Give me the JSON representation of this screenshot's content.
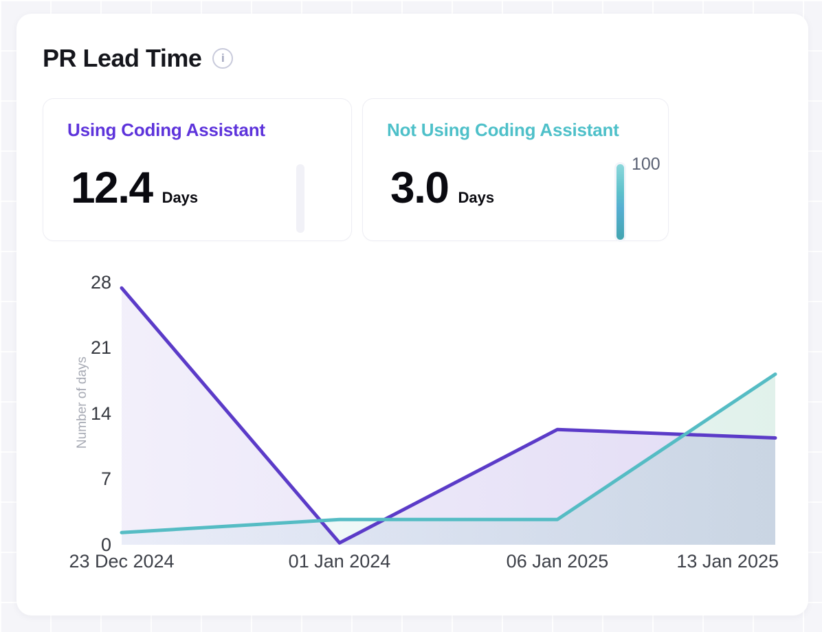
{
  "header": {
    "title": "PR Lead Time"
  },
  "stats": [
    {
      "label": "Using Coding Assistant",
      "value": "12.4",
      "unit": "Days",
      "accent": "#5D33DB",
      "gauge_label": ""
    },
    {
      "label": "Not Using Coding Assistant",
      "value": "3.0",
      "unit": "Days",
      "accent": "#4EC0C9",
      "gauge_label": "100"
    }
  ],
  "chart_data": {
    "type": "area",
    "x": [
      "23 Dec 2024",
      "01 Jan 2024",
      "06 Jan 2025",
      "13 Jan 2025"
    ],
    "series": [
      {
        "name": "Using Coding Assistant",
        "color": "#5B3BC8",
        "values": [
          27.4,
          0.2,
          12.3,
          11.4
        ]
      },
      {
        "name": "Not Using Coding Assistant",
        "color": "#55BCC4",
        "values": [
          1.3,
          2.7,
          2.7,
          18.2
        ]
      }
    ],
    "title": "",
    "xlabel": "",
    "ylabel": "Number of days",
    "yticks": [
      0,
      7,
      14,
      21,
      28
    ],
    "ylim": [
      0,
      28
    ],
    "grid": false,
    "legend": "none"
  }
}
